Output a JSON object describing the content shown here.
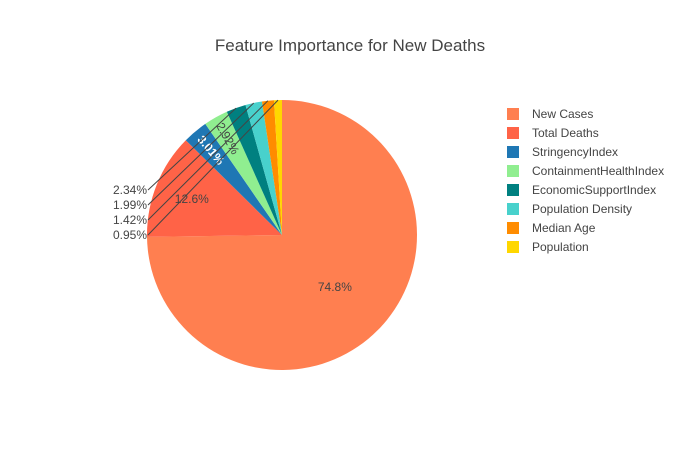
{
  "chart_data": {
    "type": "pie",
    "title": "Feature Importance for New Deaths",
    "direction": "clockwise",
    "start": "12 o'clock",
    "legend_position": "right",
    "slices": [
      {
        "label": "New Cases",
        "value": 74.8,
        "text": "74.8%",
        "color": "#ff7f50"
      },
      {
        "label": "Total Deaths",
        "value": 12.6,
        "text": "12.6%",
        "color": "#ff6347"
      },
      {
        "label": "StringencyIndex",
        "value": 3.01,
        "text": "3.01%",
        "color": "#1f77b4"
      },
      {
        "label": "ContainmentHealthIndex",
        "value": 2.92,
        "text": "2.92%",
        "color": "#90ee90"
      },
      {
        "label": "EconomicSupportIndex",
        "value": 2.34,
        "text": "2.34%",
        "color": "#008080"
      },
      {
        "label": "Population Density",
        "value": 1.99,
        "text": "1.99%",
        "color": "#48d1cc"
      },
      {
        "label": "Median Age",
        "value": 1.42,
        "text": "1.42%",
        "color": "#ff8c00"
      },
      {
        "label": "Population",
        "value": 0.95,
        "text": "0.95%",
        "color": "#ffd700"
      }
    ]
  }
}
